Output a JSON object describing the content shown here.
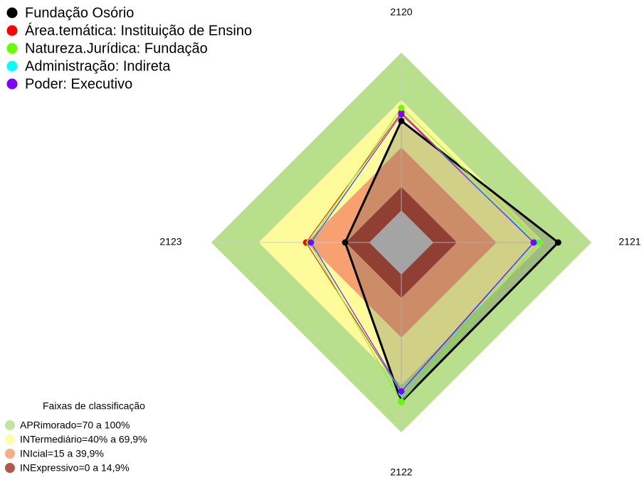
{
  "chart_data": {
    "type": "radar",
    "categories": [
      "2120",
      "2121",
      "2122",
      "2123"
    ],
    "ylim": [
      0,
      100
    ],
    "series": [
      {
        "name": "Fundação Osório",
        "color": "#000000",
        "values": [
          56.8,
          79,
          80.6,
          15.3
        ]
      },
      {
        "name": "Área.temática: Instituição de Ensino",
        "color": "#ff0000",
        "values": [
          62,
          63.5,
          74.8,
          40
        ]
      },
      {
        "name": "Natureza.Jurídica: Fundação",
        "color": "#66ff00",
        "values": [
          65,
          67,
          80.6,
          38
        ]
      },
      {
        "name": "Administração: Indireta",
        "color": "#00ffff",
        "values": [
          61,
          64.4,
          75,
          36.5
        ]
      },
      {
        "name": "Poder: Executivo",
        "color": "#8000ff",
        "values": [
          61,
          63.5,
          74,
          37
        ]
      }
    ],
    "bands": {
      "title": "Faixas de classificação",
      "items": [
        {
          "label": "APRimorado=70 a 100%",
          "color": "#b8e08c",
          "range": [
            70,
            100
          ]
        },
        {
          "label": "INTermediário=40% a 69,9%",
          "color": "#fdfb9a",
          "range": [
            40,
            69.9
          ]
        },
        {
          "label": "INIcial=15 a 39,9%",
          "color": "#f7a070",
          "range": [
            15,
            39.9
          ]
        },
        {
          "label": "INExpressivo=0 a 14,9%",
          "color": "#a63b28",
          "range": [
            0,
            14.9
          ]
        }
      ]
    }
  }
}
